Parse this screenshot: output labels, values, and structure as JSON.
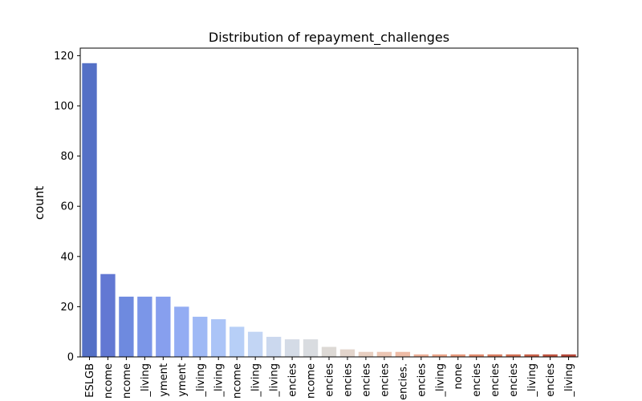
{
  "chart_data": {
    "type": "bar",
    "title": "Distribution of repayment_challenges",
    "xlabel": "",
    "ylabel": "count",
    "ylim": [
      0,
      123
    ],
    "yticks": [
      0,
      20,
      40,
      60,
      80,
      100,
      120
    ],
    "grid": false,
    "categories": [
      "ESLGB",
      "ncome",
      "ncome",
      "_living",
      "yment",
      "yment",
      "_living",
      "_living",
      "ncome",
      "_living",
      "_living",
      "encies",
      "ncome",
      "encies",
      "encies",
      "encies",
      "encies",
      "encies.",
      "encies",
      "_living",
      "none",
      "encies",
      "encies",
      "encies",
      "_living",
      "encies",
      "_living"
    ],
    "values": [
      117,
      33,
      24,
      24,
      24,
      20,
      16,
      15,
      12,
      10,
      8,
      7,
      7,
      4,
      3,
      2,
      2,
      2,
      1,
      1,
      1,
      1,
      1,
      1,
      1,
      1,
      1
    ],
    "colors": [
      "#5470c6",
      "#6278d3",
      "#6e8adf",
      "#7b96e8",
      "#879fee",
      "#93acf3",
      "#9fb9f5",
      "#abc4f7",
      "#b7cff7",
      "#c2d5f4",
      "#cbd8ee",
      "#d4dbe6",
      "#d9dce0",
      "#ddd9d5",
      "#e3d5cc",
      "#e8cfc1",
      "#ecc6b4",
      "#eebca6",
      "#eeb199",
      "#eda68b",
      "#e89a7e",
      "#e38d70",
      "#dc8063",
      "#d47257",
      "#cb644c",
      "#c25642",
      "#b84a3c"
    ]
  }
}
